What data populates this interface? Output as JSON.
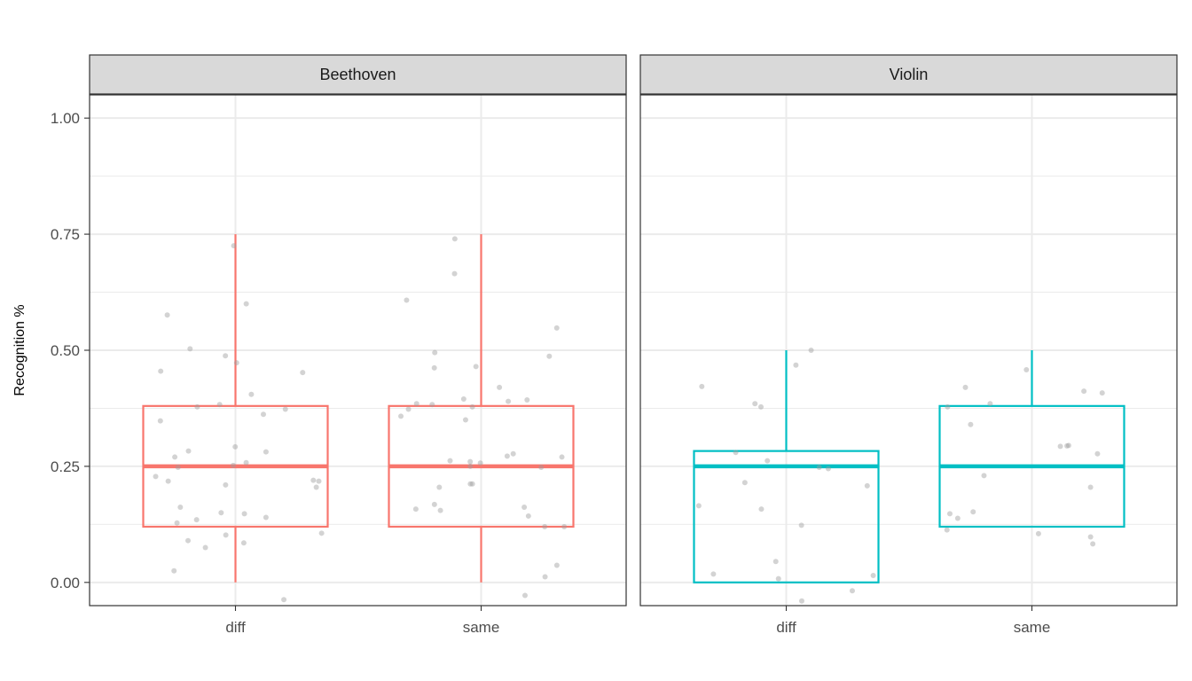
{
  "chart_data": {
    "type": "boxplot",
    "title": "",
    "xlabel": "",
    "ylabel": "Recognition %",
    "ylim": [
      -0.05,
      1.05
    ],
    "y_ticks": [
      {
        "value": 0.0,
        "label": "0.00"
      },
      {
        "value": 0.25,
        "label": "0.25"
      },
      {
        "value": 0.5,
        "label": "0.50"
      },
      {
        "value": 0.75,
        "label": "0.75"
      },
      {
        "value": 1.0,
        "label": "1.00"
      }
    ],
    "categories": [
      "diff",
      "same"
    ],
    "grid": true,
    "legend": "none",
    "panels": [
      {
        "name": "Beethoven",
        "color": "#F8766D",
        "boxes": [
          {
            "category": "diff",
            "whisker_low": 0.0,
            "q1": 0.12,
            "median": 0.25,
            "q3": 0.38,
            "whisker_high": 0.75,
            "points": [
              0.725,
              0.6,
              0.576,
              0.503,
              0.488,
              0.473,
              0.455,
              0.452,
              0.405,
              0.383,
              0.378,
              0.373,
              0.362,
              0.348,
              0.292,
              0.283,
              0.281,
              0.27,
              0.258,
              0.252,
              0.248,
              0.228,
              0.22,
              0.218,
              0.218,
              0.21,
              0.205,
              0.162,
              0.15,
              0.148,
              0.14,
              0.135,
              0.128,
              0.106,
              0.102,
              0.09,
              0.085,
              0.075,
              0.025,
              -0.037
            ]
          },
          {
            "category": "same",
            "whisker_low": 0.0,
            "q1": 0.12,
            "median": 0.25,
            "q3": 0.38,
            "whisker_high": 0.75,
            "points": [
              0.74,
              0.665,
              0.608,
              0.548,
              0.495,
              0.487,
              0.465,
              0.462,
              0.42,
              0.395,
              0.393,
              0.39,
              0.385,
              0.383,
              0.378,
              0.373,
              0.358,
              0.35,
              0.277,
              0.272,
              0.27,
              0.262,
              0.26,
              0.257,
              0.25,
              0.248,
              0.212,
              0.212,
              0.205,
              0.168,
              0.162,
              0.158,
              0.155,
              0.143,
              0.12,
              0.12,
              0.037,
              0.012,
              -0.028
            ]
          }
        ]
      },
      {
        "name": "Violin",
        "color": "#00BFC4",
        "boxes": [
          {
            "category": "diff",
            "whisker_low": 0.0,
            "q1": 0.0,
            "median": 0.25,
            "q3": 0.283,
            "whisker_high": 0.5,
            "points": [
              0.5,
              0.468,
              0.422,
              0.385,
              0.378,
              0.28,
              0.262,
              0.248,
              0.245,
              0.215,
              0.208,
              0.165,
              0.158,
              0.123,
              0.045,
              0.018,
              0.015,
              0.008,
              -0.018,
              -0.04
            ]
          },
          {
            "category": "same",
            "whisker_low": 0.12,
            "q1": 0.12,
            "median": 0.25,
            "q3": 0.38,
            "whisker_high": 0.5,
            "points": [
              0.458,
              0.42,
              0.412,
              0.408,
              0.385,
              0.378,
              0.34,
              0.295,
              0.294,
              0.293,
              0.277,
              0.23,
              0.205,
              0.152,
              0.148,
              0.138,
              0.113,
              0.105,
              0.098,
              0.083
            ]
          }
        ]
      }
    ]
  }
}
